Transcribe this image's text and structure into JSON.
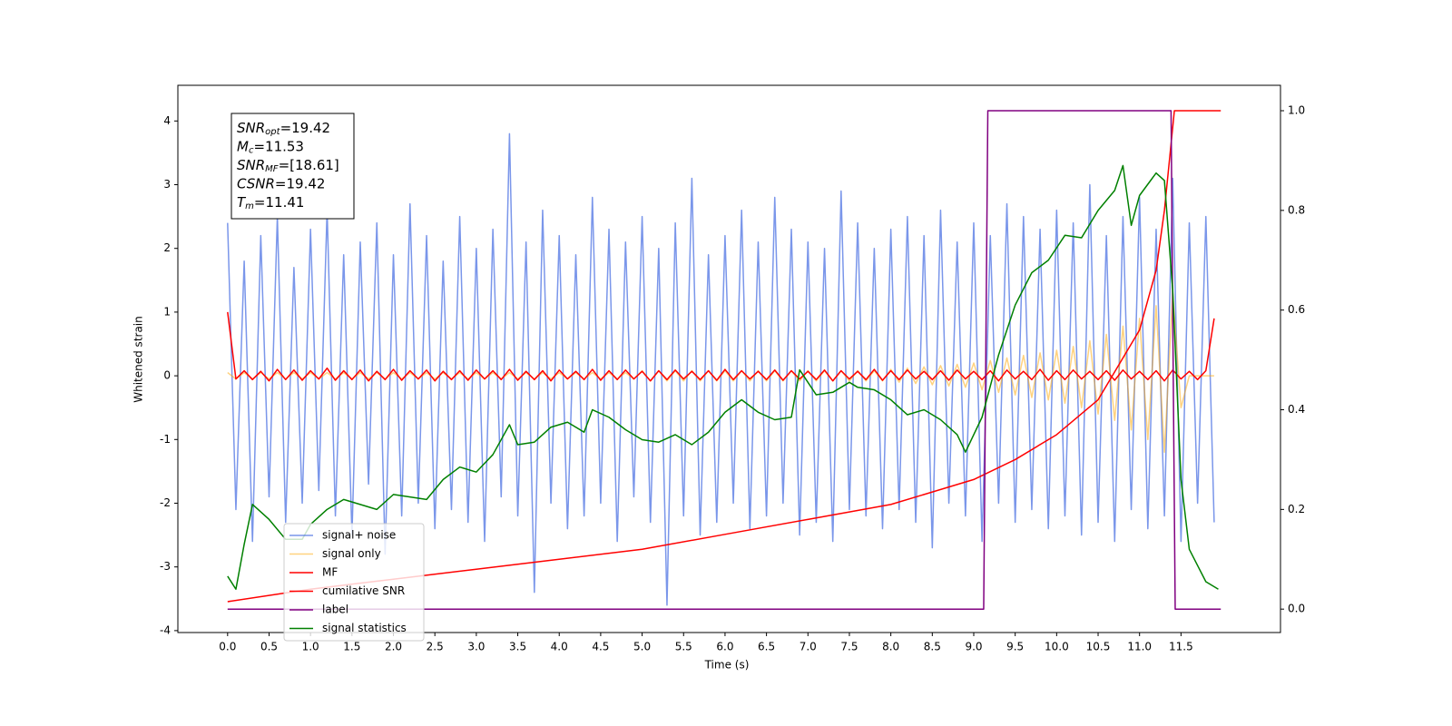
{
  "chart_data": {
    "type": "line",
    "xlabel": "Time (s)",
    "ylabel": "Whitened strain",
    "xlim": [
      -0.6,
      12.7
    ],
    "ylim": [
      -4.03,
      4.56
    ],
    "y2lim": [
      -0.047,
      1.051
    ],
    "xticks": [
      {
        "value": 0,
        "label": "0.0"
      },
      0.5,
      {
        "value": 1,
        "label": "1.0"
      },
      1.5,
      {
        "value": 2,
        "label": "2.0"
      },
      2.5,
      {
        "value": 3,
        "label": "3.0"
      },
      3.5,
      {
        "value": 4,
        "label": "4.0"
      },
      4.5,
      {
        "value": 5,
        "label": "5.0"
      },
      5.5,
      {
        "value": 6,
        "label": "6.0"
      },
      6.5,
      {
        "value": 7,
        "label": "7.0"
      },
      7.5,
      {
        "value": 8,
        "label": "8.0"
      },
      8.5,
      {
        "value": 9,
        "label": "9.0"
      },
      9.5,
      {
        "value": 10,
        "label": "10.0"
      },
      10.5,
      {
        "value": 11,
        "label": "11.0"
      },
      11.5
    ],
    "yticks": [
      -4,
      -3,
      -2,
      -1,
      0,
      1,
      2,
      3,
      4
    ],
    "y2ticks": [
      {
        "value": 0,
        "label": "0.0"
      },
      0.2,
      0.4,
      0.6,
      0.8,
      {
        "value": 1,
        "label": "1.0"
      }
    ],
    "legend": "lower left",
    "annotation": [
      {
        "symbol": "SNR",
        "subscript": "opt",
        "text": "=19.42"
      },
      {
        "symbol": "M",
        "subscript": "c",
        "text": "=11.53"
      },
      {
        "symbol": "SNR",
        "subscript": "MF",
        "text": "=[18.61]"
      },
      {
        "symbol": "CSNR",
        "subscript": null,
        "text": "=19.42"
      },
      {
        "symbol": "T",
        "subscript": "m",
        "text": "=11.41"
      }
    ],
    "x": [
      0,
      0.1,
      0.2,
      0.3,
      0.4,
      0.5,
      0.6,
      0.7,
      0.8,
      0.9,
      1,
      1.1,
      1.2,
      1.3,
      1.4,
      1.5,
      1.6,
      1.7,
      1.8,
      1.9,
      2,
      2.1,
      2.2,
      2.3,
      2.4,
      2.5,
      2.6,
      2.7,
      2.8,
      2.9,
      3,
      3.1,
      3.2,
      3.3,
      3.4,
      3.5,
      3.6,
      3.7,
      3.8,
      3.9,
      4,
      4.1,
      4.2,
      4.3,
      4.4,
      4.5,
      4.6,
      4.7,
      4.8,
      4.9,
      5,
      5.1,
      5.2,
      5.3,
      5.4,
      5.5,
      5.6,
      5.7,
      5.8,
      5.9,
      6,
      6.1,
      6.2,
      6.3,
      6.4,
      6.5,
      6.6,
      6.7,
      6.8,
      6.9,
      7,
      7.1,
      7.2,
      7.3,
      7.4,
      7.5,
      7.6,
      7.7,
      7.8,
      7.9,
      8,
      8.1,
      8.2,
      8.3,
      8.4,
      8.5,
      8.6,
      8.7,
      8.8,
      8.9,
      9,
      9.1,
      9.2,
      9.3,
      9.4,
      9.5,
      9.6,
      9.7,
      9.8,
      9.9,
      10,
      10.1,
      10.2,
      10.3,
      10.4,
      10.5,
      10.6,
      10.7,
      10.8,
      10.9,
      11,
      11.1,
      11.2,
      11.3,
      11.4,
      11.5,
      11.6,
      11.7,
      11.8,
      11.9
    ],
    "series": [
      {
        "name": "signal+ noise",
        "color": "#4169e1",
        "values": [
          2.4,
          -2.1,
          1.8,
          -2.6,
          2.2,
          -1.9,
          2.5,
          -2.3,
          1.7,
          -2.0,
          2.3,
          -1.8,
          2.6,
          -2.2,
          1.9,
          -2.5,
          2.1,
          -1.7,
          2.4,
          -2.8,
          1.9,
          -2.2,
          2.7,
          -2.0,
          2.2,
          -2.4,
          1.8,
          -2.1,
          2.5,
          -2.3,
          2.0,
          -2.6,
          2.3,
          -1.9,
          3.8,
          -2.2,
          2.1,
          -3.4,
          2.6,
          -2.0,
          2.2,
          -2.4,
          1.9,
          -2.2,
          2.8,
          -2.0,
          2.3,
          -2.6,
          2.1,
          -1.9,
          2.5,
          -2.3,
          2.0,
          -3.6,
          2.4,
          -2.2,
          3.1,
          -2.5,
          1.9,
          -2.3,
          2.2,
          -2.0,
          2.6,
          -2.4,
          2.1,
          -2.2,
          2.8,
          -2.0,
          2.3,
          -2.5,
          2.1,
          -2.3,
          2.0,
          -2.6,
          2.9,
          -2.1,
          2.4,
          -2.2,
          2.0,
          -2.4,
          2.3,
          -2.1,
          2.5,
          -2.3,
          2.2,
          -2.7,
          2.6,
          -2.0,
          2.1,
          -2.2,
          2.4,
          -2.6,
          2.2,
          -2.0,
          2.7,
          -2.3,
          2.5,
          -2.1,
          2.3,
          -2.4,
          2.6,
          -2.2,
          2.4,
          -2.5,
          3.0,
          -2.3,
          2.2,
          -2.6,
          2.5,
          -2.1,
          2.8,
          -2.4,
          2.3,
          -2.2,
          3.1,
          -2.6,
          2.4,
          -2.0,
          2.5,
          -2.3
        ]
      },
      {
        "name": "signal only",
        "color": "#ffa500",
        "values": [
          0.05,
          -0.05,
          0.05,
          -0.05,
          0.05,
          -0.05,
          0.05,
          -0.05,
          0.05,
          -0.05,
          0.05,
          -0.05,
          0.05,
          -0.05,
          0.05,
          -0.05,
          0.05,
          -0.05,
          0.05,
          -0.05,
          0.05,
          -0.05,
          0.05,
          -0.05,
          0.05,
          -0.05,
          0.05,
          -0.05,
          0.05,
          -0.05,
          0.05,
          -0.05,
          0.05,
          -0.05,
          0.05,
          -0.05,
          0.05,
          -0.05,
          0.05,
          -0.05,
          0.05,
          -0.05,
          0.05,
          -0.05,
          0.05,
          -0.05,
          0.05,
          -0.05,
          0.05,
          -0.05,
          0.08,
          -0.08,
          0.08,
          -0.08,
          0.08,
          -0.08,
          0.08,
          -0.08,
          0.08,
          -0.08,
          0.08,
          -0.08,
          0.08,
          -0.08,
          0.08,
          -0.08,
          0.08,
          -0.08,
          0.08,
          -0.08,
          0.08,
          -0.08,
          0.08,
          -0.08,
          0.08,
          -0.08,
          0.08,
          -0.08,
          0.08,
          -0.08,
          0.1,
          -0.1,
          0.12,
          -0.12,
          0.14,
          -0.14,
          0.16,
          -0.16,
          0.18,
          -0.18,
          0.2,
          -0.22,
          0.24,
          -0.26,
          0.28,
          -0.3,
          0.32,
          -0.34,
          0.36,
          -0.38,
          0.4,
          -0.43,
          0.46,
          -0.5,
          0.55,
          -0.6,
          0.65,
          -0.7,
          0.78,
          -0.85,
          0.9,
          -1.0,
          1.1,
          -1.2,
          1.3,
          -0.5,
          0,
          0,
          0,
          0
        ]
      },
      {
        "name": "MF",
        "color": "#ff0000",
        "values": [
          1.0,
          -0.05,
          0.08,
          -0.06,
          0.07,
          -0.08,
          0.1,
          -0.06,
          0.09,
          -0.07,
          0.08,
          -0.05,
          0.12,
          -0.07,
          0.08,
          -0.06,
          0.09,
          -0.08,
          0.07,
          -0.06,
          0.1,
          -0.07,
          0.08,
          -0.05,
          0.09,
          -0.08,
          0.07,
          -0.06,
          0.08,
          -0.07,
          0.09,
          -0.05,
          0.08,
          -0.06,
          0.1,
          -0.07,
          0.07,
          -0.06,
          0.08,
          -0.08,
          0.09,
          -0.05,
          0.07,
          -0.06,
          0.1,
          -0.07,
          0.08,
          -0.06,
          0.09,
          -0.05,
          0.07,
          -0.08,
          0.08,
          -0.06,
          0.09,
          -0.05,
          0.07,
          -0.06,
          0.08,
          -0.07,
          0.1,
          -0.06,
          0.08,
          -0.05,
          0.07,
          -0.06,
          0.09,
          -0.07,
          0.08,
          -0.05,
          0.07,
          -0.06,
          0.09,
          -0.08,
          0.08,
          -0.05,
          0.07,
          -0.06,
          0.1,
          -0.07,
          0.08,
          -0.06,
          0.09,
          -0.05,
          0.07,
          -0.06,
          0.08,
          -0.07,
          0.09,
          -0.05,
          0.07,
          -0.06,
          0.08,
          -0.08,
          0.09,
          -0.05,
          0.07,
          -0.06,
          0.1,
          -0.07,
          0.08,
          -0.06,
          0.09,
          -0.05,
          0.07,
          -0.06,
          0.08,
          -0.07,
          0.09,
          -0.05,
          0.07,
          -0.06,
          0.08,
          -0.08,
          0.09,
          -0.05,
          0.07,
          -0.06,
          0.08,
          0.9
        ]
      },
      {
        "name": "cumilative SNR",
        "color": "#ff0000",
        "axis": "y2",
        "x": [
          0,
          1,
          2,
          3,
          4,
          5,
          6,
          7,
          8,
          9,
          9.5,
          10,
          10.5,
          11,
          11.2,
          11.3,
          11.42,
          11.98
        ],
        "values": [
          0.015,
          0.04,
          0.06,
          0.08,
          0.1,
          0.12,
          0.15,
          0.18,
          0.21,
          0.26,
          0.3,
          0.35,
          0.42,
          0.56,
          0.68,
          0.8,
          1.0,
          1.0
        ]
      },
      {
        "name": "label",
        "color": "#800080",
        "axis": "y2",
        "x": [
          0,
          9.12,
          9.17,
          11.38,
          11.43,
          11.98
        ],
        "values": [
          0,
          0,
          1,
          1,
          0,
          0
        ]
      },
      {
        "name": "signal statistics",
        "color": "#008000",
        "axis": "y2",
        "x": [
          0,
          0.1,
          0.2,
          0.3,
          0.5,
          0.7,
          0.9,
          1,
          1.2,
          1.4,
          1.6,
          1.8,
          2,
          2.2,
          2.4,
          2.6,
          2.8,
          3,
          3.2,
          3.4,
          3.5,
          3.7,
          3.9,
          4.1,
          4.3,
          4.4,
          4.6,
          4.8,
          5,
          5.2,
          5.4,
          5.6,
          5.8,
          6,
          6.2,
          6.4,
          6.6,
          6.8,
          6.9,
          7.1,
          7.3,
          7.5,
          7.6,
          7.8,
          8,
          8.2,
          8.4,
          8.6,
          8.8,
          8.9,
          9.1,
          9.3,
          9.5,
          9.7,
          9.9,
          10.1,
          10.3,
          10.5,
          10.7,
          10.8,
          10.9,
          11,
          11.2,
          11.3,
          11.4,
          11.5,
          11.6,
          11.8,
          11.95
        ],
        "values": [
          0.066,
          0.04,
          0.13,
          0.21,
          0.18,
          0.14,
          0.14,
          0.17,
          0.2,
          0.22,
          0.21,
          0.2,
          0.23,
          0.225,
          0.22,
          0.26,
          0.285,
          0.275,
          0.31,
          0.37,
          0.33,
          0.335,
          0.365,
          0.375,
          0.355,
          0.4,
          0.385,
          0.36,
          0.34,
          0.335,
          0.35,
          0.33,
          0.355,
          0.395,
          0.42,
          0.395,
          0.38,
          0.385,
          0.48,
          0.43,
          0.435,
          0.455,
          0.445,
          0.44,
          0.42,
          0.39,
          0.4,
          0.38,
          0.35,
          0.315,
          0.385,
          0.51,
          0.61,
          0.675,
          0.7,
          0.75,
          0.745,
          0.8,
          0.84,
          0.89,
          0.77,
          0.83,
          0.875,
          0.86,
          0.64,
          0.26,
          0.12,
          0.055,
          0.04
        ]
      }
    ]
  }
}
